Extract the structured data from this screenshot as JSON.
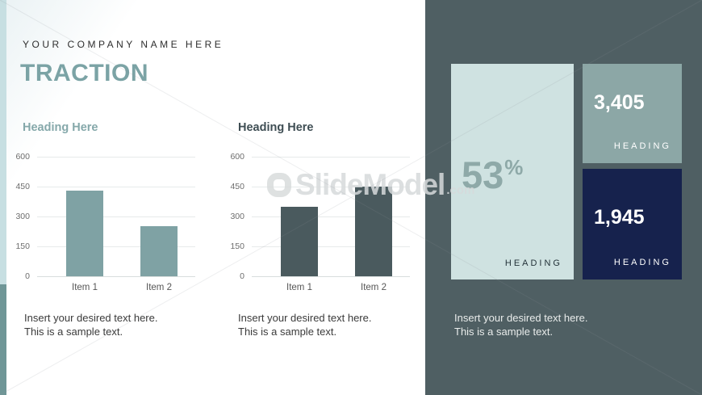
{
  "slide": {
    "company_name": "YOUR COMPANY NAME HERE",
    "title": "TRACTION"
  },
  "left_charts": [
    {
      "heading": "Heading Here",
      "desc_line1": "Insert your desired text here.",
      "desc_line2": "This is a sample text."
    },
    {
      "heading": "Heading Here",
      "desc_line1": "Insert your desired text here.",
      "desc_line2": "This is a sample text."
    }
  ],
  "chart_data": [
    {
      "type": "bar",
      "title": "Heading Here",
      "categories": [
        "Item 1",
        "Item 2"
      ],
      "values": [
        430,
        250
      ],
      "xlabel": "",
      "ylabel": "",
      "ylim": [
        0,
        600
      ],
      "yticks": [
        0,
        150,
        300,
        450,
        600
      ],
      "grid": true,
      "legend": "none",
      "bar_color": "#7fa2a4"
    },
    {
      "type": "bar",
      "title": "Heading Here",
      "categories": [
        "Item 1",
        "Item 2"
      ],
      "values": [
        350,
        450
      ],
      "xlabel": "",
      "ylabel": "",
      "ylim": [
        0,
        600
      ],
      "yticks": [
        0,
        150,
        300,
        450,
        600
      ],
      "grid": true,
      "legend": "none",
      "bar_color": "#4a5a5e"
    }
  ],
  "stats_panel": {
    "percent_box": {
      "value": "53",
      "unit": "%",
      "label": "HEADING"
    },
    "count_box_top": {
      "value": "3,405",
      "label": "HEADING"
    },
    "count_box_bottom": {
      "value": "1,945",
      "label": "HEADING"
    },
    "desc_line1": "Insert your desired text here.",
    "desc_line2": "This is a sample text."
  },
  "watermark": {
    "text": "SlideModel",
    "suffix": ".com"
  },
  "colors": {
    "title_teal": "#7ba3a5",
    "chart1_bar": "#7fa2a4",
    "chart2_bar": "#4a5a5e",
    "chart1_heading": "#85a8aa",
    "chart2_heading": "#3f4e54",
    "panel_background": "#4f5f63",
    "light_box": "#cfe2e1",
    "teal_box": "#8ca7a6",
    "navy_box": "#16224d",
    "accent_edge_top": "#c7dfe2",
    "accent_edge_bottom": "#6f9697"
  }
}
